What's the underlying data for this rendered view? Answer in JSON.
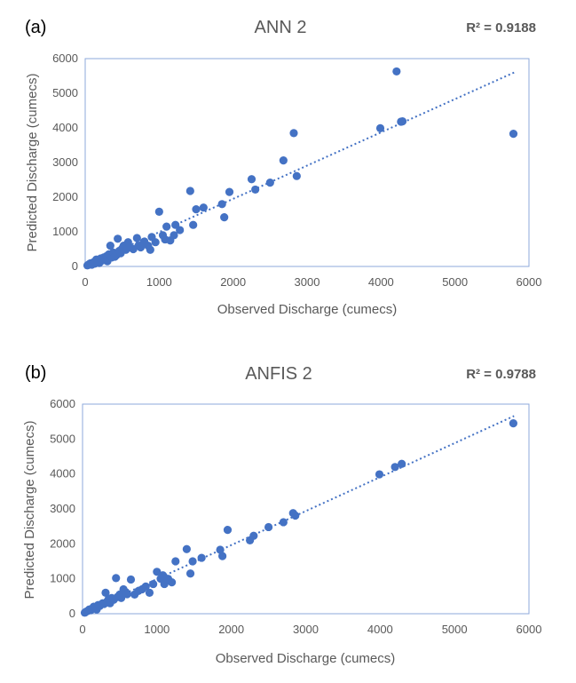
{
  "chart_data": [
    {
      "type": "scatter",
      "panel_label": "(a)",
      "title": "ANN 2",
      "r2_label": "R² = 0.9188",
      "xlabel": "Observed Discharge (cumecs)",
      "ylabel": "Predicted Discharge (cumecs)",
      "xlim": [
        0,
        6000
      ],
      "ylim": [
        0,
        6000
      ],
      "x_ticks": [
        0,
        1000,
        2000,
        3000,
        4000,
        5000,
        6000
      ],
      "y_ticks": [
        0,
        1000,
        2000,
        3000,
        4000,
        5000,
        6000
      ],
      "grid": false,
      "marker_color": "#4472C4",
      "trendline": {
        "x": [
          30,
          5800
        ],
        "y": [
          60,
          5600
        ],
        "style": "dotted"
      },
      "points": [
        [
          30,
          30
        ],
        [
          50,
          60
        ],
        [
          70,
          90
        ],
        [
          90,
          50
        ],
        [
          110,
          120
        ],
        [
          130,
          80
        ],
        [
          150,
          200
        ],
        [
          170,
          150
        ],
        [
          190,
          100
        ],
        [
          210,
          230
        ],
        [
          230,
          170
        ],
        [
          250,
          260
        ],
        [
          270,
          200
        ],
        [
          290,
          300
        ],
        [
          300,
          150
        ],
        [
          320,
          350
        ],
        [
          340,
          600
        ],
        [
          360,
          260
        ],
        [
          380,
          400
        ],
        [
          400,
          280
        ],
        [
          420,
          320
        ],
        [
          440,
          800
        ],
        [
          460,
          450
        ],
        [
          480,
          380
        ],
        [
          500,
          520
        ],
        [
          520,
          600
        ],
        [
          550,
          480
        ],
        [
          580,
          700
        ],
        [
          600,
          550
        ],
        [
          650,
          500
        ],
        [
          700,
          820
        ],
        [
          720,
          600
        ],
        [
          750,
          550
        ],
        [
          780,
          650
        ],
        [
          800,
          720
        ],
        [
          850,
          600
        ],
        [
          880,
          480
        ],
        [
          900,
          850
        ],
        [
          950,
          700
        ],
        [
          1000,
          1580
        ],
        [
          1050,
          900
        ],
        [
          1080,
          780
        ],
        [
          1100,
          1150
        ],
        [
          1150,
          750
        ],
        [
          1200,
          900
        ],
        [
          1220,
          1200
        ],
        [
          1280,
          1050
        ],
        [
          1420,
          2180
        ],
        [
          1460,
          1200
        ],
        [
          1500,
          1650
        ],
        [
          1600,
          1700
        ],
        [
          1850,
          1800
        ],
        [
          1880,
          1420
        ],
        [
          1950,
          2150
        ],
        [
          2250,
          2520
        ],
        [
          2300,
          2220
        ],
        [
          2500,
          2420
        ],
        [
          2680,
          3060
        ],
        [
          2820,
          3850
        ],
        [
          2860,
          2610
        ],
        [
          3990,
          3990
        ],
        [
          4210,
          5630
        ],
        [
          4270,
          4180
        ],
        [
          4290,
          4190
        ],
        [
          5790,
          3830
        ]
      ]
    },
    {
      "type": "scatter",
      "panel_label": "(b)",
      "title": "ANFIS 2",
      "r2_label": "R² = 0.9788",
      "xlabel": "Observed Discharge (cumecs)",
      "ylabel": "Predicted Discharge (cumecs)",
      "xlim": [
        0,
        6000
      ],
      "ylim": [
        0,
        6000
      ],
      "x_ticks": [
        0,
        1000,
        2000,
        3000,
        4000,
        5000,
        6000
      ],
      "y_ticks": [
        0,
        1000,
        2000,
        3000,
        4000,
        5000,
        6000
      ],
      "grid": false,
      "marker_color": "#4472C4",
      "trendline": {
        "x": [
          30,
          5800
        ],
        "y": [
          50,
          5660
        ],
        "style": "dotted"
      },
      "points": [
        [
          30,
          30
        ],
        [
          50,
          60
        ],
        [
          70,
          80
        ],
        [
          90,
          120
        ],
        [
          110,
          100
        ],
        [
          130,
          150
        ],
        [
          150,
          200
        ],
        [
          170,
          180
        ],
        [
          190,
          120
        ],
        [
          210,
          250
        ],
        [
          230,
          220
        ],
        [
          250,
          260
        ],
        [
          270,
          300
        ],
        [
          290,
          280
        ],
        [
          310,
          600
        ],
        [
          330,
          350
        ],
        [
          350,
          420
        ],
        [
          370,
          300
        ],
        [
          390,
          450
        ],
        [
          420,
          400
        ],
        [
          450,
          1020
        ],
        [
          470,
          480
        ],
        [
          500,
          550
        ],
        [
          520,
          450
        ],
        [
          550,
          700
        ],
        [
          580,
          620
        ],
        [
          600,
          560
        ],
        [
          650,
          980
        ],
        [
          700,
          550
        ],
        [
          750,
          650
        ],
        [
          800,
          700
        ],
        [
          850,
          780
        ],
        [
          900,
          600
        ],
        [
          950,
          850
        ],
        [
          1000,
          1200
        ],
        [
          1050,
          1000
        ],
        [
          1080,
          1100
        ],
        [
          1100,
          850
        ],
        [
          1150,
          1000
        ],
        [
          1200,
          900
        ],
        [
          1250,
          1500
        ],
        [
          1400,
          1850
        ],
        [
          1450,
          1150
        ],
        [
          1480,
          1500
        ],
        [
          1600,
          1600
        ],
        [
          1850,
          1830
        ],
        [
          1880,
          1650
        ],
        [
          1950,
          2400
        ],
        [
          2250,
          2100
        ],
        [
          2300,
          2230
        ],
        [
          2500,
          2480
        ],
        [
          2700,
          2620
        ],
        [
          2830,
          2880
        ],
        [
          2860,
          2810
        ],
        [
          3990,
          3990
        ],
        [
          4200,
          4200
        ],
        [
          4290,
          4290
        ],
        [
          5790,
          5450
        ]
      ]
    }
  ]
}
